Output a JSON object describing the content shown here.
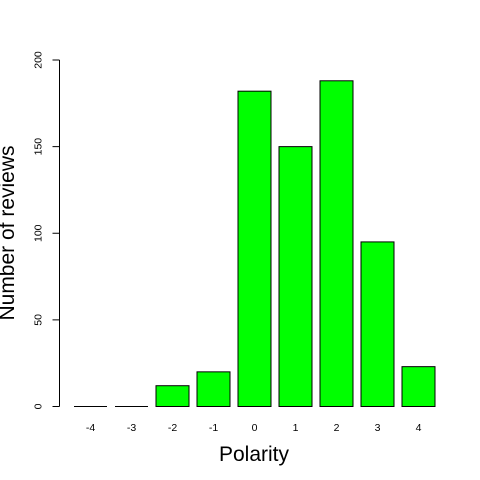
{
  "chart_data": {
    "type": "bar",
    "categories": [
      "-4",
      "-3",
      "-2",
      "-1",
      "0",
      "1",
      "2",
      "3",
      "4"
    ],
    "values": [
      0,
      0,
      12,
      20,
      182,
      150,
      188,
      95,
      23
    ],
    "xlabel": "Polarity",
    "ylabel": "Number of reviews",
    "ylim": [
      0,
      200
    ],
    "yticks": [
      0,
      50,
      100,
      150,
      200
    ],
    "grid": false,
    "bar_color": "#00ff00",
    "bar_border_color": "#000000"
  }
}
